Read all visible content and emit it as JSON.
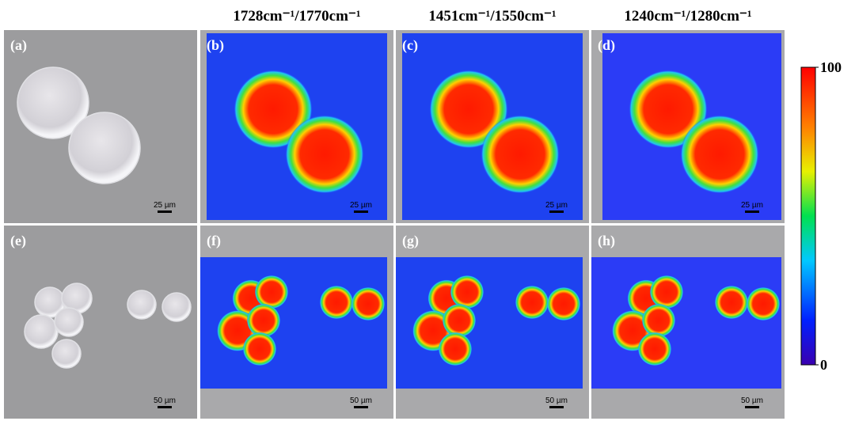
{
  "column_headers": [
    "1728cm⁻¹/1770cm⁻¹",
    "1451cm⁻¹/1550cm⁻¹",
    "1240cm⁻¹/1280cm⁻¹"
  ],
  "panels": [
    {
      "label": "(a)",
      "scale_bar": "25 µm"
    },
    {
      "label": "(b)",
      "scale_bar": "25 µm"
    },
    {
      "label": "(c)",
      "scale_bar": "25 µm"
    },
    {
      "label": "(d)",
      "scale_bar": "25 µm"
    },
    {
      "label": "(e)",
      "scale_bar": "50 µm"
    },
    {
      "label": "(f)",
      "scale_bar": "50 µm"
    },
    {
      "label": "(g)",
      "scale_bar": "50 µm"
    },
    {
      "label": "(h)",
      "scale_bar": "50 µm"
    }
  ],
  "colorbar": {
    "ticks": [
      0,
      100
    ]
  }
}
